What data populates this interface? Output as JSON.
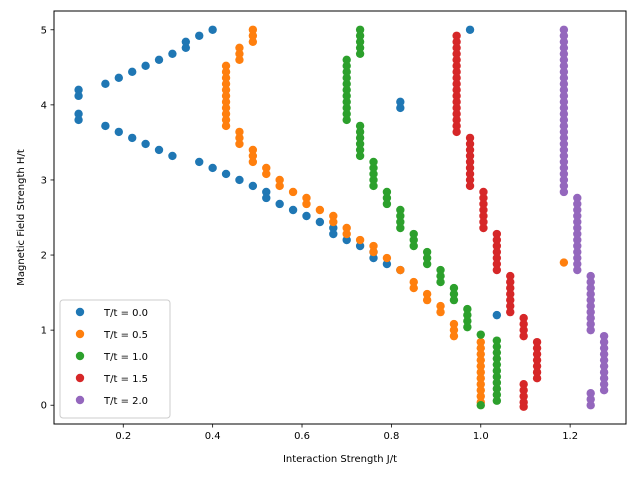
{
  "chart_data": {
    "type": "scatter",
    "xlabel": "Interaction Strength J/t",
    "ylabel": "Magnetic Field Strength H/t",
    "xlim": [
      0.045,
      1.325
    ],
    "ylim": [
      -0.25,
      5.25
    ],
    "xticks": [
      0.2,
      0.4,
      0.6,
      0.8,
      1.0,
      1.2
    ],
    "yticks": [
      0,
      1,
      2,
      3,
      4,
      5
    ],
    "xtick_labels": [
      "0.2",
      "0.4",
      "0.6",
      "0.8",
      "1.0",
      "1.2"
    ],
    "ytick_labels": [
      "0",
      "1",
      "2",
      "3",
      "4",
      "5"
    ],
    "grid": false,
    "legend_position": "lower-left",
    "series": [
      {
        "name": "T/t = 0.0",
        "color": "#1f77b4",
        "points": [
          [
            0.1,
            4.2
          ],
          [
            0.1,
            4.12
          ],
          [
            0.1,
            3.88
          ],
          [
            0.1,
            3.8
          ],
          [
            0.16,
            4.28
          ],
          [
            0.19,
            4.36
          ],
          [
            0.22,
            4.44
          ],
          [
            0.25,
            4.52
          ],
          [
            0.28,
            4.6
          ],
          [
            0.31,
            4.68
          ],
          [
            0.34,
            4.76
          ],
          [
            0.34,
            4.84
          ],
          [
            0.37,
            4.92
          ],
          [
            0.4,
            5.0
          ],
          [
            0.16,
            3.72
          ],
          [
            0.19,
            3.64
          ],
          [
            0.22,
            3.56
          ],
          [
            0.25,
            3.48
          ],
          [
            0.28,
            3.4
          ],
          [
            0.31,
            3.32
          ],
          [
            0.37,
            3.24
          ],
          [
            0.4,
            3.16
          ],
          [
            0.43,
            3.08
          ],
          [
            0.46,
            3.0
          ],
          [
            0.49,
            2.92
          ],
          [
            0.52,
            2.84
          ],
          [
            0.52,
            2.76
          ],
          [
            0.55,
            2.68
          ],
          [
            0.58,
            2.6
          ],
          [
            0.61,
            2.52
          ],
          [
            0.64,
            2.44
          ],
          [
            0.67,
            2.36
          ],
          [
            0.67,
            2.28
          ],
          [
            0.7,
            2.2
          ],
          [
            0.73,
            2.12
          ],
          [
            0.76,
            2.04
          ],
          [
            0.76,
            1.96
          ],
          [
            0.79,
            1.88
          ],
          [
            0.82,
            1.8
          ],
          [
            0.82,
            4.04
          ],
          [
            0.82,
            3.96
          ],
          [
            1.036,
            1.2
          ],
          [
            0.976,
            5.0
          ]
        ]
      },
      {
        "name": "T/t = 0.5",
        "color": "#ff7f0e",
        "points": [
          [
            0.49,
            5.0
          ],
          [
            0.49,
            4.92
          ],
          [
            0.49,
            4.84
          ],
          [
            0.46,
            4.76
          ],
          [
            0.46,
            4.68
          ],
          [
            0.46,
            4.6
          ],
          [
            0.43,
            4.52
          ],
          [
            0.43,
            4.44
          ],
          [
            0.43,
            4.36
          ],
          [
            0.43,
            4.28
          ],
          [
            0.43,
            4.2
          ],
          [
            0.43,
            4.12
          ],
          [
            0.43,
            4.04
          ],
          [
            0.43,
            3.96
          ],
          [
            0.43,
            3.88
          ],
          [
            0.43,
            3.8
          ],
          [
            0.43,
            3.72
          ],
          [
            0.46,
            3.64
          ],
          [
            0.46,
            3.56
          ],
          [
            0.46,
            3.48
          ],
          [
            0.49,
            3.4
          ],
          [
            0.49,
            3.32
          ],
          [
            0.49,
            3.24
          ],
          [
            0.52,
            3.16
          ],
          [
            0.52,
            3.08
          ],
          [
            0.55,
            3.0
          ],
          [
            0.55,
            2.92
          ],
          [
            0.58,
            2.84
          ],
          [
            0.61,
            2.76
          ],
          [
            0.61,
            2.68
          ],
          [
            0.64,
            2.6
          ],
          [
            0.67,
            2.52
          ],
          [
            0.67,
            2.44
          ],
          [
            0.7,
            2.36
          ],
          [
            0.7,
            2.28
          ],
          [
            0.73,
            2.2
          ],
          [
            0.76,
            2.12
          ],
          [
            0.76,
            2.04
          ],
          [
            0.79,
            1.96
          ],
          [
            0.82,
            1.8
          ],
          [
            0.85,
            1.64
          ],
          [
            0.85,
            1.56
          ],
          [
            0.88,
            1.48
          ],
          [
            0.88,
            1.4
          ],
          [
            0.91,
            1.32
          ],
          [
            0.91,
            1.24
          ],
          [
            0.94,
            1.08
          ],
          [
            0.94,
            1.0
          ],
          [
            0.94,
            0.92
          ],
          [
            1.0,
            0.84
          ],
          [
            1.0,
            0.76
          ],
          [
            1.0,
            0.68
          ],
          [
            1.0,
            0.6
          ],
          [
            1.0,
            0.52
          ],
          [
            1.0,
            0.44
          ],
          [
            1.0,
            0.36
          ],
          [
            1.0,
            0.28
          ],
          [
            1.0,
            0.2
          ],
          [
            1.0,
            0.12
          ],
          [
            1.0,
            0.04
          ],
          [
            1.186,
            1.9
          ]
        ]
      },
      {
        "name": "T/t = 1.0",
        "color": "#2ca02c",
        "points": [
          [
            0.73,
            5.0
          ],
          [
            0.73,
            4.92
          ],
          [
            0.73,
            4.84
          ],
          [
            0.73,
            4.76
          ],
          [
            0.73,
            4.68
          ],
          [
            0.7,
            4.6
          ],
          [
            0.7,
            4.52
          ],
          [
            0.7,
            4.44
          ],
          [
            0.7,
            4.36
          ],
          [
            0.7,
            4.28
          ],
          [
            0.7,
            4.2
          ],
          [
            0.7,
            4.12
          ],
          [
            0.7,
            4.04
          ],
          [
            0.7,
            3.96
          ],
          [
            0.7,
            3.88
          ],
          [
            0.7,
            3.8
          ],
          [
            0.73,
            3.72
          ],
          [
            0.73,
            3.64
          ],
          [
            0.73,
            3.56
          ],
          [
            0.73,
            3.48
          ],
          [
            0.73,
            3.4
          ],
          [
            0.73,
            3.32
          ],
          [
            0.76,
            3.24
          ],
          [
            0.76,
            3.16
          ],
          [
            0.76,
            3.08
          ],
          [
            0.76,
            3.0
          ],
          [
            0.76,
            2.92
          ],
          [
            0.79,
            2.84
          ],
          [
            0.79,
            2.76
          ],
          [
            0.79,
            2.68
          ],
          [
            0.82,
            2.6
          ],
          [
            0.82,
            2.52
          ],
          [
            0.82,
            2.44
          ],
          [
            0.82,
            2.36
          ],
          [
            0.85,
            2.28
          ],
          [
            0.85,
            2.2
          ],
          [
            0.85,
            2.12
          ],
          [
            0.88,
            2.04
          ],
          [
            0.88,
            1.96
          ],
          [
            0.88,
            1.88
          ],
          [
            0.91,
            1.8
          ],
          [
            0.91,
            1.72
          ],
          [
            0.91,
            1.64
          ],
          [
            0.94,
            1.56
          ],
          [
            0.94,
            1.48
          ],
          [
            0.94,
            1.4
          ],
          [
            0.97,
            1.28
          ],
          [
            0.97,
            1.2
          ],
          [
            0.97,
            1.12
          ],
          [
            0.97,
            1.04
          ],
          [
            1.0,
            0.94
          ],
          [
            1.036,
            0.86
          ],
          [
            1.036,
            0.78
          ],
          [
            1.036,
            0.7
          ],
          [
            1.036,
            0.62
          ],
          [
            1.036,
            0.54
          ],
          [
            1.036,
            0.46
          ],
          [
            1.036,
            0.38
          ],
          [
            1.036,
            0.3
          ],
          [
            1.036,
            0.22
          ],
          [
            1.036,
            0.14
          ],
          [
            1.036,
            0.06
          ],
          [
            1.0,
            0.0
          ]
        ]
      },
      {
        "name": "T/t = 1.5",
        "color": "#d62728",
        "points": [
          [
            0.946,
            4.92
          ],
          [
            0.946,
            4.84
          ],
          [
            0.946,
            4.76
          ],
          [
            0.946,
            4.68
          ],
          [
            0.946,
            4.6
          ],
          [
            0.946,
            4.52
          ],
          [
            0.946,
            4.44
          ],
          [
            0.946,
            4.36
          ],
          [
            0.946,
            4.28
          ],
          [
            0.946,
            4.2
          ],
          [
            0.946,
            4.12
          ],
          [
            0.946,
            4.04
          ],
          [
            0.946,
            3.96
          ],
          [
            0.946,
            3.88
          ],
          [
            0.946,
            3.8
          ],
          [
            0.946,
            3.72
          ],
          [
            0.946,
            3.64
          ],
          [
            0.976,
            3.56
          ],
          [
            0.976,
            3.48
          ],
          [
            0.976,
            3.4
          ],
          [
            0.976,
            3.32
          ],
          [
            0.976,
            3.24
          ],
          [
            0.976,
            3.16
          ],
          [
            0.976,
            3.08
          ],
          [
            0.976,
            3.0
          ],
          [
            0.976,
            2.92
          ],
          [
            1.006,
            2.84
          ],
          [
            1.006,
            2.76
          ],
          [
            1.006,
            2.68
          ],
          [
            1.006,
            2.6
          ],
          [
            1.006,
            2.52
          ],
          [
            1.006,
            2.44
          ],
          [
            1.006,
            2.36
          ],
          [
            1.036,
            2.28
          ],
          [
            1.036,
            2.2
          ],
          [
            1.036,
            2.12
          ],
          [
            1.036,
            2.04
          ],
          [
            1.036,
            1.96
          ],
          [
            1.036,
            1.88
          ],
          [
            1.036,
            1.8
          ],
          [
            1.066,
            1.72
          ],
          [
            1.066,
            1.64
          ],
          [
            1.066,
            1.56
          ],
          [
            1.066,
            1.48
          ],
          [
            1.066,
            1.4
          ],
          [
            1.066,
            1.32
          ],
          [
            1.066,
            1.24
          ],
          [
            1.096,
            1.16
          ],
          [
            1.096,
            1.08
          ],
          [
            1.096,
            1.0
          ],
          [
            1.096,
            0.92
          ],
          [
            1.126,
            0.84
          ],
          [
            1.126,
            0.76
          ],
          [
            1.126,
            0.68
          ],
          [
            1.126,
            0.6
          ],
          [
            1.126,
            0.52
          ],
          [
            1.126,
            0.44
          ],
          [
            1.126,
            0.36
          ],
          [
            1.096,
            0.28
          ],
          [
            1.096,
            0.2
          ],
          [
            1.096,
            0.12
          ],
          [
            1.096,
            0.04
          ],
          [
            1.096,
            -0.02
          ]
        ]
      },
      {
        "name": "T/t = 2.0",
        "color": "#9467bd",
        "points": [
          [
            1.186,
            5.0
          ],
          [
            1.186,
            4.92
          ],
          [
            1.186,
            4.84
          ],
          [
            1.186,
            4.76
          ],
          [
            1.186,
            4.68
          ],
          [
            1.186,
            4.6
          ],
          [
            1.186,
            4.52
          ],
          [
            1.186,
            4.44
          ],
          [
            1.186,
            4.36
          ],
          [
            1.186,
            4.28
          ],
          [
            1.186,
            4.2
          ],
          [
            1.186,
            4.12
          ],
          [
            1.186,
            4.04
          ],
          [
            1.186,
            3.96
          ],
          [
            1.186,
            3.88
          ],
          [
            1.186,
            3.8
          ],
          [
            1.186,
            3.72
          ],
          [
            1.186,
            3.64
          ],
          [
            1.186,
            3.56
          ],
          [
            1.186,
            3.48
          ],
          [
            1.186,
            3.4
          ],
          [
            1.186,
            3.32
          ],
          [
            1.186,
            3.24
          ],
          [
            1.186,
            3.16
          ],
          [
            1.186,
            3.08
          ],
          [
            1.186,
            3.0
          ],
          [
            1.186,
            2.92
          ],
          [
            1.186,
            2.84
          ],
          [
            1.216,
            2.76
          ],
          [
            1.216,
            2.68
          ],
          [
            1.216,
            2.6
          ],
          [
            1.216,
            2.52
          ],
          [
            1.216,
            2.44
          ],
          [
            1.216,
            2.36
          ],
          [
            1.216,
            2.28
          ],
          [
            1.216,
            2.2
          ],
          [
            1.216,
            2.12
          ],
          [
            1.216,
            2.04
          ],
          [
            1.216,
            1.96
          ],
          [
            1.216,
            1.88
          ],
          [
            1.216,
            1.8
          ],
          [
            1.246,
            1.72
          ],
          [
            1.246,
            1.64
          ],
          [
            1.246,
            1.56
          ],
          [
            1.246,
            1.48
          ],
          [
            1.246,
            1.4
          ],
          [
            1.246,
            1.32
          ],
          [
            1.246,
            1.24
          ],
          [
            1.246,
            1.16
          ],
          [
            1.246,
            1.08
          ],
          [
            1.246,
            1.0
          ],
          [
            1.276,
            0.92
          ],
          [
            1.276,
            0.84
          ],
          [
            1.276,
            0.76
          ],
          [
            1.276,
            0.68
          ],
          [
            1.276,
            0.6
          ],
          [
            1.276,
            0.52
          ],
          [
            1.276,
            0.44
          ],
          [
            1.276,
            0.36
          ],
          [
            1.276,
            0.28
          ],
          [
            1.276,
            0.2
          ],
          [
            1.246,
            0.16
          ],
          [
            1.246,
            0.08
          ],
          [
            1.246,
            0.0
          ]
        ]
      }
    ]
  }
}
